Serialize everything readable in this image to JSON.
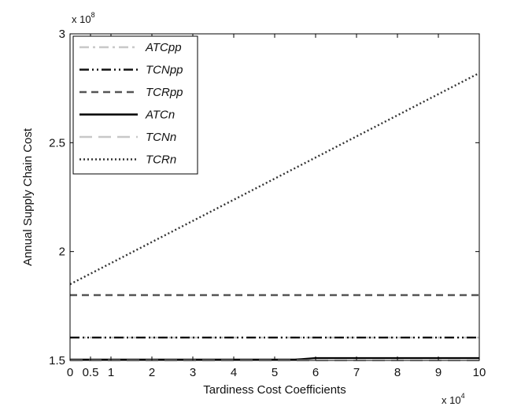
{
  "chart_data": {
    "type": "line",
    "xlabel": "Tardiness Cost Coefficients",
    "ylabel": "Annual Supply Chain Cost",
    "x_multiplier": {
      "base": "x 10",
      "exp": "4"
    },
    "y_multiplier": {
      "base": "x 10",
      "exp": "8"
    },
    "xlim": [
      0,
      100000
    ],
    "ylim": [
      150000000,
      300000000
    ],
    "x_ticks": [
      {
        "value": 0,
        "label": "0"
      },
      {
        "value": 5000,
        "label": "0.5"
      },
      {
        "value": 10000,
        "label": "1"
      },
      {
        "value": 20000,
        "label": "2"
      },
      {
        "value": 30000,
        "label": "3"
      },
      {
        "value": 40000,
        "label": "4"
      },
      {
        "value": 50000,
        "label": "5"
      },
      {
        "value": 60000,
        "label": "6"
      },
      {
        "value": 70000,
        "label": "7"
      },
      {
        "value": 80000,
        "label": "8"
      },
      {
        "value": 90000,
        "label": "9"
      },
      {
        "value": 100000,
        "label": "10"
      }
    ],
    "y_ticks": [
      {
        "value": 150000000,
        "label": "1.5"
      },
      {
        "value": 200000000,
        "label": "2"
      },
      {
        "value": 250000000,
        "label": "2.5"
      },
      {
        "value": 300000000,
        "label": "3"
      }
    ],
    "grid": false,
    "legend_position": "top-left",
    "series": [
      {
        "name": "ATCpp",
        "color": "#c8c8c8",
        "dash": "dashdot",
        "x": [
          0,
          100000
        ],
        "y": [
          160500000,
          160500000
        ]
      },
      {
        "name": "TCNpp",
        "color": "#111111",
        "dash": "dashdotdot",
        "x": [
          0,
          100000
        ],
        "y": [
          160500000,
          160500000
        ]
      },
      {
        "name": "TCRpp",
        "color": "#555555",
        "dash": "dashed",
        "x": [
          0,
          100000
        ],
        "y": [
          180000000,
          180000000
        ]
      },
      {
        "name": "ATCn",
        "color": "#000000",
        "dash": "solid",
        "x": [
          0,
          55000,
          60000,
          100000
        ],
        "y": [
          150400000,
          150400000,
          151100000,
          151100000
        ]
      },
      {
        "name": "TCNn",
        "color": "#c8c8c8",
        "dash": "longdash",
        "x": [
          0,
          100000
        ],
        "y": [
          150000000,
          150000000
        ]
      },
      {
        "name": "TCRn",
        "color": "#333333",
        "dash": "dotted",
        "x": [
          0,
          100000
        ],
        "y": [
          185000000,
          282000000
        ]
      }
    ]
  }
}
